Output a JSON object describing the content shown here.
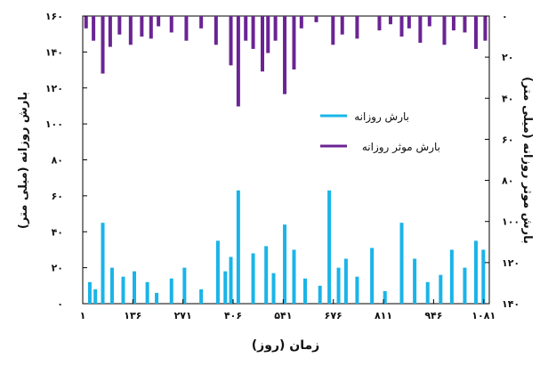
{
  "chart_data": {
    "type": "bar",
    "xlabel": "زمان (روز)",
    "ylabel": "بارش روزانه (میلی متر)",
    "y2label": "بارش موثر روزانه (میلی متر)",
    "xlim": [
      1,
      1096
    ],
    "ylim": [
      0,
      160
    ],
    "y2lim": [
      0,
      140
    ],
    "y2_inverted": true,
    "x_ticks": [
      1,
      136,
      271,
      406,
      541,
      676,
      811,
      946,
      1081
    ],
    "x_tick_labels": [
      "۱",
      "۱۳۶",
      "۲۷۱",
      "۴۰۶",
      "۵۴۱",
      "۶۷۶",
      "۸۱۱",
      "۹۴۶",
      "۱۰۸۱"
    ],
    "y_ticks": [
      0,
      20,
      40,
      60,
      80,
      100,
      120,
      140,
      160
    ],
    "y_tick_labels": [
      "۰",
      "۲۰",
      "۴۰",
      "۶۰",
      "۸۰",
      "۱۰۰",
      "۱۲۰",
      "۱۴۰",
      "۱۶۰"
    ],
    "y2_ticks": [
      0,
      20,
      40,
      60,
      80,
      100,
      120,
      140
    ],
    "y2_tick_labels": [
      "۰",
      "۲۰",
      "۴۰",
      "۶۰",
      "۸۰",
      "۱۰۰",
      "۱۲۰",
      "۱۴۰"
    ],
    "legend_position": "center-right",
    "series": [
      {
        "name": "بارش روزانه",
        "color": "#1ab4e8",
        "axis": "left",
        "points": [
          [
            20,
            12
          ],
          [
            35,
            8
          ],
          [
            55,
            45
          ],
          [
            80,
            20
          ],
          [
            110,
            15
          ],
          [
            140,
            18
          ],
          [
            175,
            12
          ],
          [
            200,
            6
          ],
          [
            240,
            14
          ],
          [
            275,
            20
          ],
          [
            320,
            8
          ],
          [
            365,
            35
          ],
          [
            385,
            18
          ],
          [
            400,
            26
          ],
          [
            420,
            63
          ],
          [
            460,
            28
          ],
          [
            495,
            32
          ],
          [
            515,
            17
          ],
          [
            545,
            44
          ],
          [
            570,
            30
          ],
          [
            600,
            14
          ],
          [
            640,
            10
          ],
          [
            665,
            63
          ],
          [
            690,
            20
          ],
          [
            710,
            25
          ],
          [
            740,
            15
          ],
          [
            780,
            31
          ],
          [
            815,
            7
          ],
          [
            860,
            45
          ],
          [
            895,
            25
          ],
          [
            930,
            12
          ],
          [
            965,
            16
          ],
          [
            995,
            30
          ],
          [
            1030,
            20
          ],
          [
            1060,
            35
          ],
          [
            1080,
            30
          ]
        ]
      },
      {
        "name": "بارش موثر روزانه",
        "color": "#6a2494",
        "axis": "right",
        "points": [
          [
            10,
            6
          ],
          [
            30,
            12
          ],
          [
            55,
            28
          ],
          [
            75,
            15
          ],
          [
            100,
            9
          ],
          [
            130,
            14
          ],
          [
            160,
            10
          ],
          [
            185,
            11
          ],
          [
            205,
            5
          ],
          [
            240,
            8
          ],
          [
            280,
            12
          ],
          [
            320,
            6
          ],
          [
            360,
            14
          ],
          [
            400,
            24
          ],
          [
            420,
            44
          ],
          [
            440,
            12
          ],
          [
            460,
            16
          ],
          [
            485,
            27
          ],
          [
            500,
            18
          ],
          [
            520,
            12
          ],
          [
            545,
            38
          ],
          [
            570,
            26
          ],
          [
            590,
            6
          ],
          [
            630,
            3
          ],
          [
            675,
            14
          ],
          [
            700,
            9
          ],
          [
            740,
            11
          ],
          [
            800,
            7
          ],
          [
            830,
            4
          ],
          [
            860,
            10
          ],
          [
            880,
            6
          ],
          [
            910,
            13
          ],
          [
            935,
            5
          ],
          [
            975,
            14
          ],
          [
            1000,
            7
          ],
          [
            1030,
            8
          ],
          [
            1060,
            16
          ],
          [
            1085,
            12
          ]
        ]
      }
    ]
  }
}
